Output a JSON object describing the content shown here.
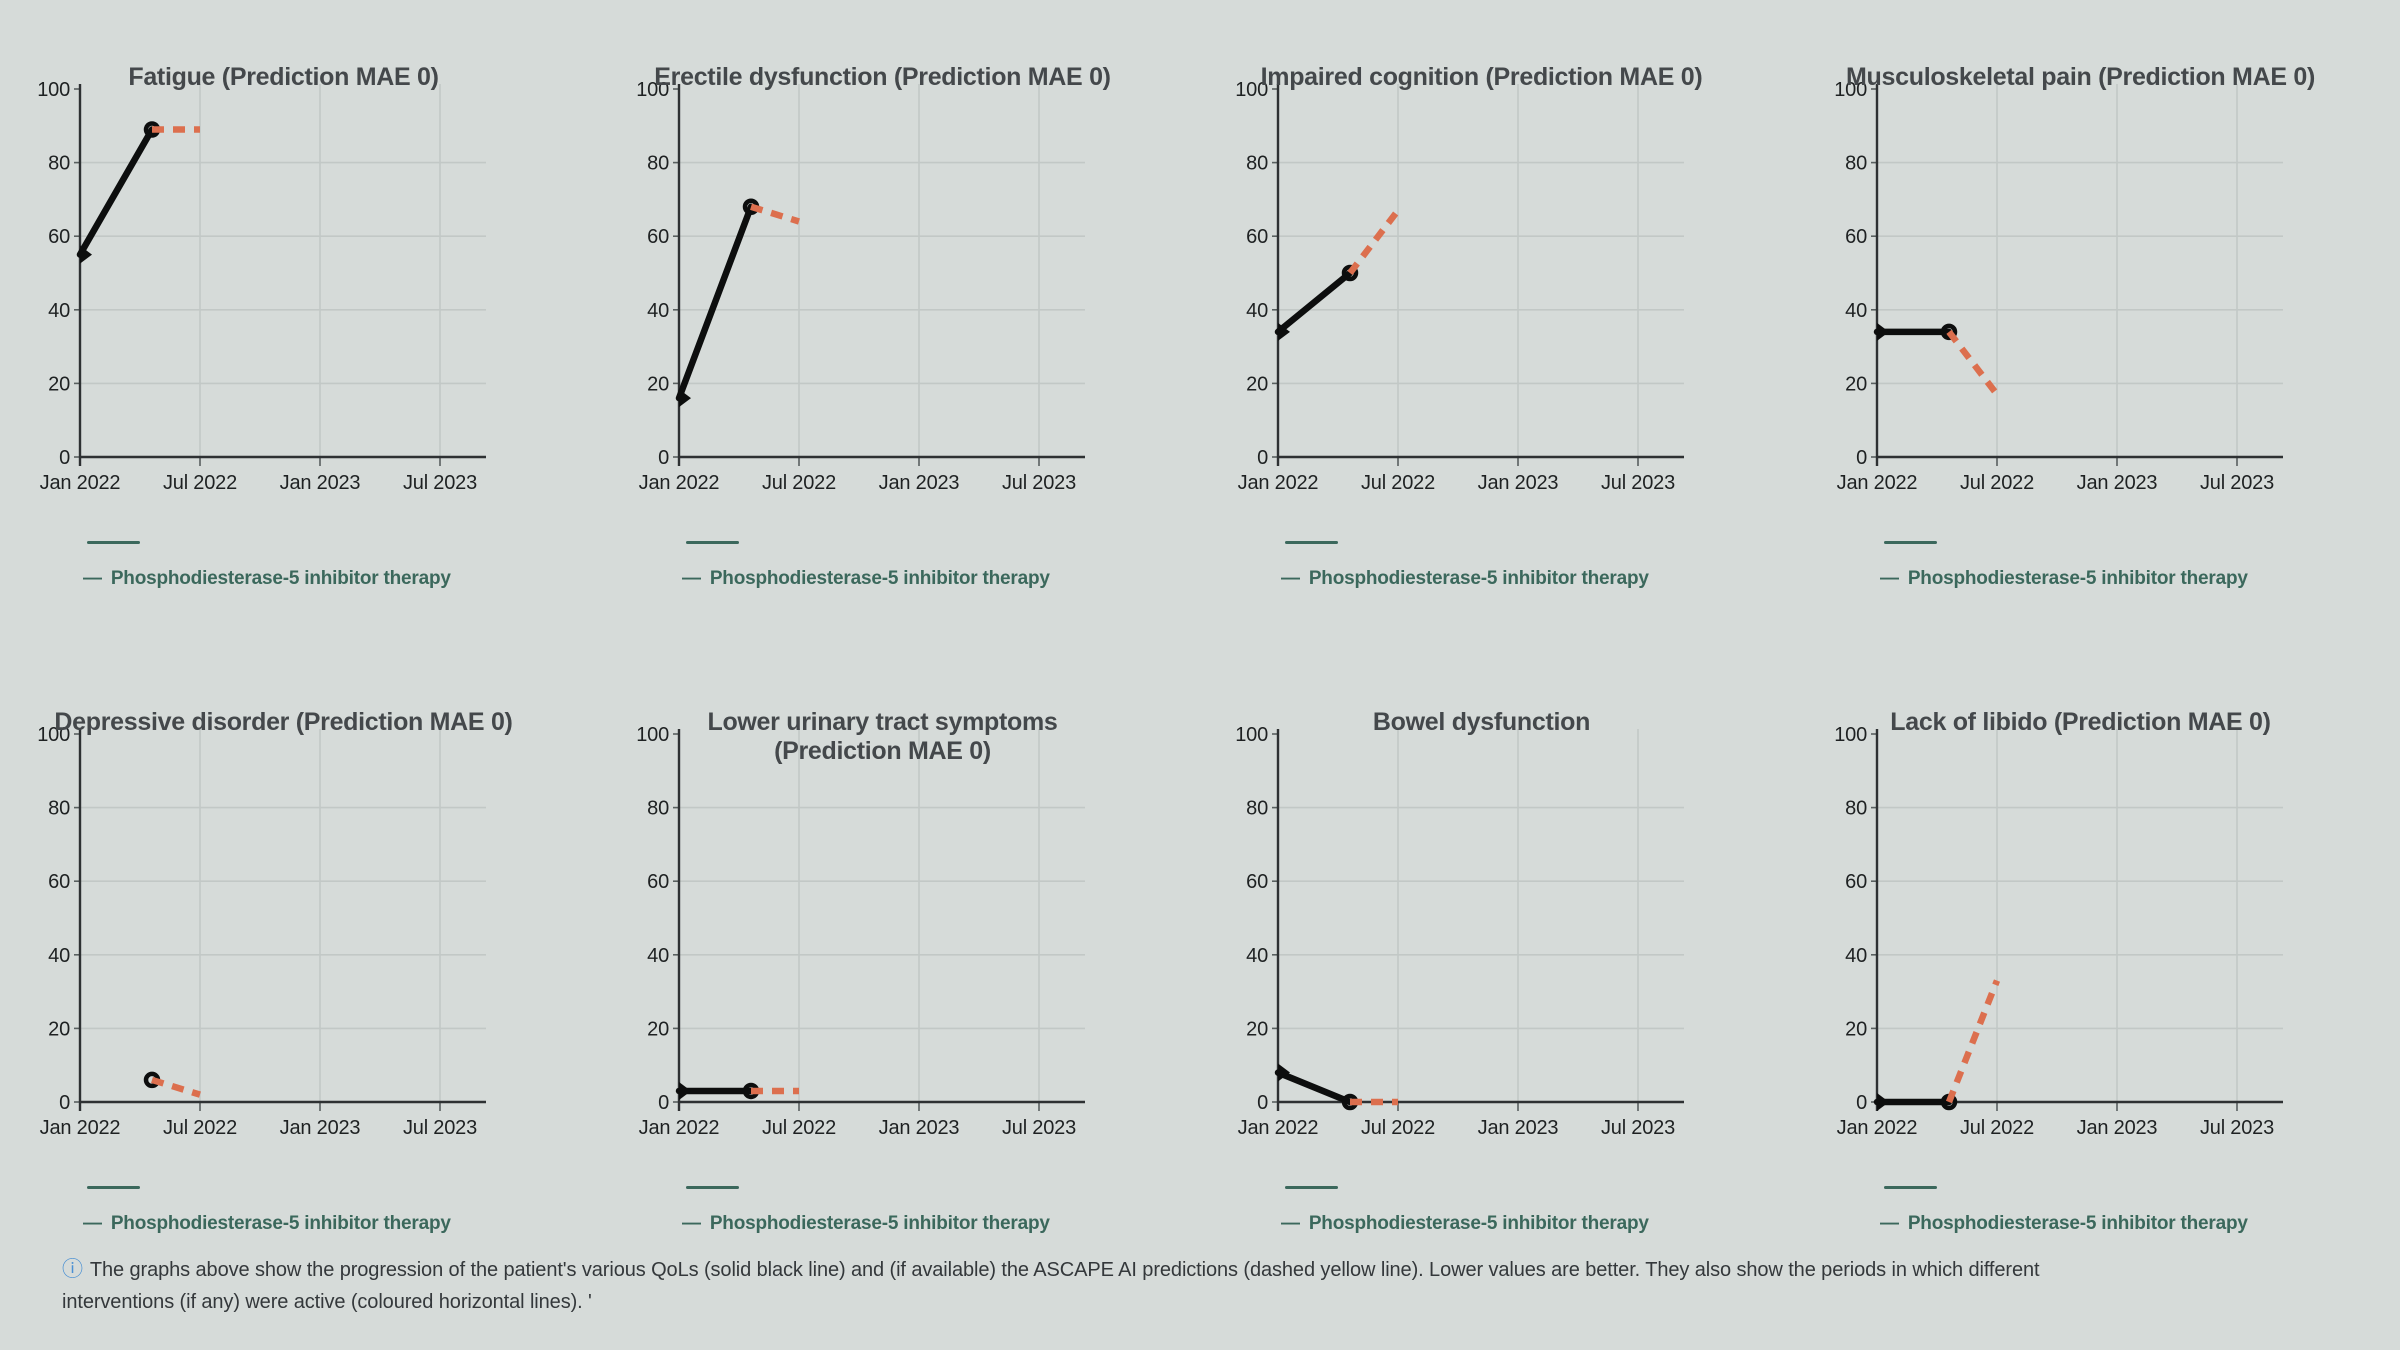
{
  "page": {
    "legend_marker": "—",
    "footer": {
      "icon_glyph": "ⓘ",
      "text": "The graphs above show the progression of the patient's various QoLs (solid black line) and (if available) the ASCAPE AI predictions (dashed yellow line). Lower values are better. They also show the periods in which different interventions (if any) were active (coloured horizontal lines). '"
    }
  },
  "colors": {
    "background": "#d6dbd9",
    "observed_line": "#0d0e0e",
    "prediction_line": "#dc6f4e",
    "intervention_line": "#3b685c",
    "grid_line": "#c2c8c6",
    "axis_line": "#2e3133",
    "title_text": "#44484b",
    "tick_text": "#1e2122",
    "footer_text": "#34383b",
    "info_icon": "#4a90d3"
  },
  "chart_data": [
    {
      "type": "line",
      "title": "Fatigue (Prediction MAE 0)",
      "x_ticks": [
        "Jan 2022",
        "Jul 2022",
        "Jan 2023",
        "Jul 2023"
      ],
      "x_tick_pos": [
        2022.0,
        2022.5,
        2023.0,
        2023.5
      ],
      "xlim": [
        2022.0,
        2023.69
      ],
      "y_ticks": [
        0,
        20,
        40,
        60,
        80,
        100
      ],
      "ylim": [
        0,
        100
      ],
      "grid": true,
      "series": [
        {
          "name": "Patient QoL",
          "style": "solid",
          "color": "#0d0e0e",
          "markers": [
            "caret",
            "dot"
          ],
          "points": [
            {
              "x": 2022.0,
              "y": 55
            },
            {
              "x": 2022.3,
              "y": 89
            }
          ]
        },
        {
          "name": "ASCAPE AI prediction",
          "style": "dashed",
          "color": "#dc6f4e",
          "markers": null,
          "points": [
            {
              "x": 2022.3,
              "y": 89
            },
            {
              "x": 2022.5,
              "y": 89
            }
          ]
        }
      ],
      "intervention": {
        "label": "Phosphodiesterase-5 inhibitor therapy",
        "color": "#3b685c",
        "span": [
          2022.03,
          2022.25
        ]
      }
    },
    {
      "type": "line",
      "title": "Erectile dysfunction (Prediction MAE 0)",
      "x_ticks": [
        "Jan 2022",
        "Jul 2022",
        "Jan 2023",
        "Jul 2023"
      ],
      "x_tick_pos": [
        2022.0,
        2022.5,
        2023.0,
        2023.5
      ],
      "xlim": [
        2022.0,
        2023.69
      ],
      "y_ticks": [
        0,
        20,
        40,
        60,
        80,
        100
      ],
      "ylim": [
        0,
        100
      ],
      "grid": true,
      "series": [
        {
          "name": "Patient QoL",
          "style": "solid",
          "color": "#0d0e0e",
          "markers": [
            "caret",
            "dot"
          ],
          "points": [
            {
              "x": 2022.0,
              "y": 16
            },
            {
              "x": 2022.3,
              "y": 68
            }
          ]
        },
        {
          "name": "ASCAPE AI prediction",
          "style": "dashed",
          "color": "#dc6f4e",
          "markers": null,
          "points": [
            {
              "x": 2022.3,
              "y": 68
            },
            {
              "x": 2022.5,
              "y": 64
            }
          ]
        }
      ],
      "intervention": {
        "label": "Phosphodiesterase-5 inhibitor therapy",
        "color": "#3b685c",
        "span": [
          2022.03,
          2022.25
        ]
      }
    },
    {
      "type": "line",
      "title": "Impaired cognition (Prediction MAE 0)",
      "x_ticks": [
        "Jan 2022",
        "Jul 2022",
        "Jan 2023",
        "Jul 2023"
      ],
      "x_tick_pos": [
        2022.0,
        2022.5,
        2023.0,
        2023.5
      ],
      "xlim": [
        2022.0,
        2023.69
      ],
      "y_ticks": [
        0,
        20,
        40,
        60,
        80,
        100
      ],
      "ylim": [
        0,
        100
      ],
      "grid": true,
      "series": [
        {
          "name": "Patient QoL",
          "style": "solid",
          "color": "#0d0e0e",
          "markers": [
            "caret",
            "dot"
          ],
          "points": [
            {
              "x": 2022.0,
              "y": 34
            },
            {
              "x": 2022.3,
              "y": 50
            }
          ]
        },
        {
          "name": "ASCAPE AI prediction",
          "style": "dashed",
          "color": "#dc6f4e",
          "markers": null,
          "points": [
            {
              "x": 2022.3,
              "y": 50
            },
            {
              "x": 2022.5,
              "y": 67
            }
          ]
        }
      ],
      "intervention": {
        "label": "Phosphodiesterase-5 inhibitor therapy",
        "color": "#3b685c",
        "span": [
          2022.03,
          2022.25
        ]
      }
    },
    {
      "type": "line",
      "title": "Musculoskeletal pain (Prediction MAE 0)",
      "x_ticks": [
        "Jan 2022",
        "Jul 2022",
        "Jan 2023",
        "Jul 2023"
      ],
      "x_tick_pos": [
        2022.0,
        2022.5,
        2023.0,
        2023.5
      ],
      "xlim": [
        2022.0,
        2023.69
      ],
      "y_ticks": [
        0,
        20,
        40,
        60,
        80,
        100
      ],
      "ylim": [
        0,
        100
      ],
      "grid": true,
      "series": [
        {
          "name": "Patient QoL",
          "style": "solid",
          "color": "#0d0e0e",
          "markers": [
            "caret",
            "dot"
          ],
          "points": [
            {
              "x": 2022.0,
              "y": 34
            },
            {
              "x": 2022.3,
              "y": 34
            }
          ]
        },
        {
          "name": "ASCAPE AI prediction",
          "style": "dashed",
          "color": "#dc6f4e",
          "markers": null,
          "points": [
            {
              "x": 2022.3,
              "y": 34
            },
            {
              "x": 2022.5,
              "y": 17
            }
          ]
        }
      ],
      "intervention": {
        "label": "Phosphodiesterase-5 inhibitor therapy",
        "color": "#3b685c",
        "span": [
          2022.03,
          2022.25
        ]
      }
    },
    {
      "type": "line",
      "title": "Depressive disorder (Prediction MAE 0)",
      "x_ticks": [
        "Jan 2022",
        "Jul 2022",
        "Jan 2023",
        "Jul 2023"
      ],
      "x_tick_pos": [
        2022.0,
        2022.5,
        2023.0,
        2023.5
      ],
      "xlim": [
        2022.0,
        2023.69
      ],
      "y_ticks": [
        0,
        20,
        40,
        60,
        80,
        100
      ],
      "ylim": [
        0,
        100
      ],
      "grid": true,
      "series": [
        {
          "name": "Patient QoL",
          "style": "solid",
          "color": "#0d0e0e",
          "markers": [
            "dot"
          ],
          "points": [
            {
              "x": 2022.3,
              "y": 6
            }
          ]
        },
        {
          "name": "ASCAPE AI prediction",
          "style": "dashed",
          "color": "#dc6f4e",
          "markers": null,
          "points": [
            {
              "x": 2022.3,
              "y": 6
            },
            {
              "x": 2022.5,
              "y": 2
            }
          ]
        }
      ],
      "intervention": {
        "label": "Phosphodiesterase-5 inhibitor therapy",
        "color": "#3b685c",
        "span": [
          2022.03,
          2022.25
        ]
      }
    },
    {
      "type": "line",
      "title": "Lower urinary tract symptoms\n(Prediction MAE 0)",
      "x_ticks": [
        "Jan 2022",
        "Jul 2022",
        "Jan 2023",
        "Jul 2023"
      ],
      "x_tick_pos": [
        2022.0,
        2022.5,
        2023.0,
        2023.5
      ],
      "xlim": [
        2022.0,
        2023.69
      ],
      "y_ticks": [
        0,
        20,
        40,
        60,
        80,
        100
      ],
      "ylim": [
        0,
        100
      ],
      "grid": true,
      "series": [
        {
          "name": "Patient QoL",
          "style": "solid",
          "color": "#0d0e0e",
          "markers": [
            "caret",
            "dot"
          ],
          "points": [
            {
              "x": 2022.0,
              "y": 3
            },
            {
              "x": 2022.3,
              "y": 3
            }
          ]
        },
        {
          "name": "ASCAPE AI prediction",
          "style": "dashed",
          "color": "#dc6f4e",
          "markers": null,
          "points": [
            {
              "x": 2022.3,
              "y": 3
            },
            {
              "x": 2022.5,
              "y": 3
            }
          ]
        }
      ],
      "intervention": {
        "label": "Phosphodiesterase-5 inhibitor therapy",
        "color": "#3b685c",
        "span": [
          2022.03,
          2022.25
        ]
      }
    },
    {
      "type": "line",
      "title": "Bowel dysfunction",
      "x_ticks": [
        "Jan 2022",
        "Jul 2022",
        "Jan 2023",
        "Jul 2023"
      ],
      "x_tick_pos": [
        2022.0,
        2022.5,
        2023.0,
        2023.5
      ],
      "xlim": [
        2022.0,
        2023.69
      ],
      "y_ticks": [
        0,
        20,
        40,
        60,
        80,
        100
      ],
      "ylim": [
        0,
        100
      ],
      "grid": true,
      "series": [
        {
          "name": "Patient QoL",
          "style": "solid",
          "color": "#0d0e0e",
          "markers": [
            "caret",
            "dot"
          ],
          "points": [
            {
              "x": 2022.0,
              "y": 8
            },
            {
              "x": 2022.3,
              "y": 0
            }
          ]
        },
        {
          "name": "ASCAPE AI prediction",
          "style": "dashed",
          "color": "#dc6f4e",
          "markers": null,
          "points": [
            {
              "x": 2022.3,
              "y": 0
            },
            {
              "x": 2022.5,
              "y": 0
            }
          ]
        }
      ],
      "intervention": {
        "label": "Phosphodiesterase-5 inhibitor therapy",
        "color": "#3b685c",
        "span": [
          2022.03,
          2022.25
        ]
      }
    },
    {
      "type": "line",
      "title": "Lack of libido (Prediction MAE 0)",
      "x_ticks": [
        "Jan 2022",
        "Jul 2022",
        "Jan 2023",
        "Jul 2023"
      ],
      "x_tick_pos": [
        2022.0,
        2022.5,
        2023.0,
        2023.5
      ],
      "xlim": [
        2022.0,
        2023.69
      ],
      "y_ticks": [
        0,
        20,
        40,
        60,
        80,
        100
      ],
      "ylim": [
        0,
        100
      ],
      "grid": true,
      "series": [
        {
          "name": "Patient QoL",
          "style": "solid",
          "color": "#0d0e0e",
          "markers": [
            "caret",
            "dot"
          ],
          "points": [
            {
              "x": 2022.0,
              "y": 0
            },
            {
              "x": 2022.3,
              "y": 0
            }
          ]
        },
        {
          "name": "ASCAPE AI prediction",
          "style": "dashed",
          "color": "#dc6f4e",
          "markers": null,
          "points": [
            {
              "x": 2022.3,
              "y": 0
            },
            {
              "x": 2022.5,
              "y": 33
            }
          ]
        }
      ],
      "intervention": {
        "label": "Phosphodiesterase-5 inhibitor therapy",
        "color": "#3b685c",
        "span": [
          2022.03,
          2022.25
        ]
      }
    }
  ]
}
